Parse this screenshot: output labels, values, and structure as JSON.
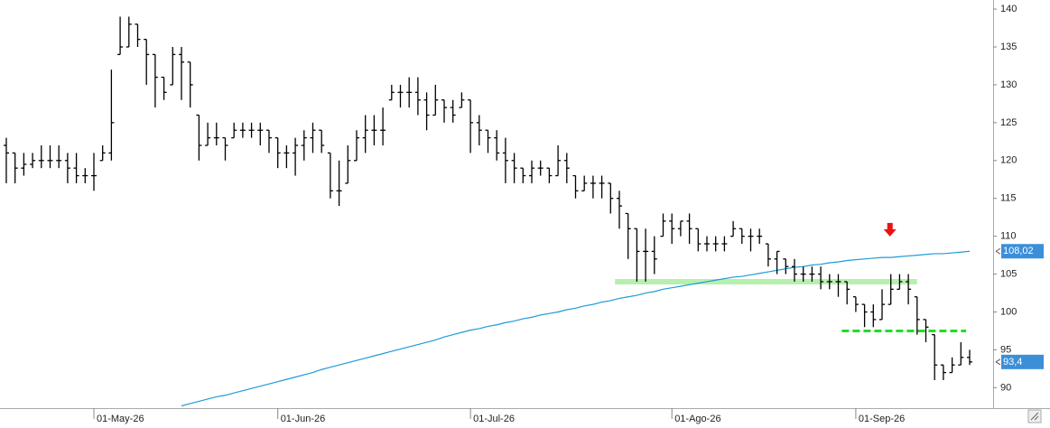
{
  "chart_data": {
    "type": "ohlc",
    "color": "#000000",
    "xlim": [
      -0.72,
      112.68
    ],
    "xticks": [
      {
        "value": 10,
        "label": "01-May-26"
      },
      {
        "value": 31,
        "label": "01-Jun-26"
      },
      {
        "value": 53,
        "label": "01-Jul-26"
      },
      {
        "value": 76,
        "label": "01-Ago-26"
      },
      {
        "value": 97,
        "label": "01-Sep-26"
      }
    ],
    "ylim": [
      87.3,
      141.2
    ],
    "yticks": [
      90,
      95,
      100,
      105,
      110,
      115,
      120,
      125,
      130,
      135,
      140
    ],
    "open": [
      122,
      121,
      119,
      119.5,
      120,
      120,
      120,
      120,
      119,
      118,
      118,
      120,
      121,
      134,
      135,
      138,
      136,
      134,
      131,
      130,
      134,
      133,
      126,
      122,
      123,
      123,
      123,
      124,
      124,
      124,
      124,
      123,
      121,
      121,
      122,
      123,
      124,
      121,
      116,
      117,
      120,
      123,
      124,
      124,
      128,
      129,
      129,
      129,
      128,
      126,
      128,
      127,
      127,
      128,
      125,
      124,
      123,
      121,
      120,
      119,
      118,
      119,
      119,
      118,
      120,
      118,
      116,
      117,
      117,
      117,
      115,
      113,
      111,
      108,
      108,
      110,
      112,
      111,
      112,
      111,
      109,
      109,
      109,
      110,
      111,
      110,
      110,
      109,
      107,
      107,
      106,
      105,
      105,
      105,
      104,
      104,
      104,
      102,
      101,
      100,
      99,
      101,
      103,
      104,
      102,
      99,
      97,
      93,
      92,
      93,
      94
    ],
    "high": [
      123,
      121,
      121,
      121,
      122,
      122,
      122,
      121,
      121,
      119,
      121,
      122,
      132,
      139,
      139,
      138,
      136,
      134,
      131,
      135,
      135,
      133,
      126,
      125,
      125,
      123,
      125,
      125,
      125,
      125,
      124,
      123,
      122,
      123,
      124,
      125,
      124,
      121,
      120,
      122,
      124,
      126,
      126,
      127,
      130,
      130,
      131,
      131,
      129,
      130,
      128,
      128,
      129,
      128,
      126,
      124,
      124,
      123,
      121,
      119,
      120,
      120,
      119,
      122,
      121,
      118,
      118,
      118,
      118,
      117,
      116,
      113,
      111,
      111,
      110,
      113,
      113,
      112,
      113,
      111,
      110,
      110,
      110,
      112,
      111,
      111,
      111,
      109,
      108,
      107,
      107,
      106,
      106,
      106,
      105,
      105,
      104,
      102,
      101,
      101,
      103,
      105,
      105,
      105,
      102,
      99,
      97,
      93,
      94,
      96,
      95
    ],
    "low": [
      117,
      117,
      118,
      119,
      119,
      119,
      119,
      117,
      117,
      117,
      116,
      120,
      120,
      134,
      135,
      135,
      130,
      127,
      128,
      130,
      128,
      127,
      120,
      122,
      122,
      120,
      123,
      123,
      123,
      122,
      121,
      119,
      119,
      118,
      120,
      121,
      121,
      115,
      114,
      117,
      120,
      121,
      122,
      122,
      128,
      127,
      127,
      126,
      124,
      126,
      125,
      125,
      127,
      121,
      122,
      121,
      120,
      117,
      117,
      117,
      117,
      118,
      117,
      118,
      117,
      115,
      116,
      115,
      115,
      113,
      111,
      107,
      104,
      104,
      105,
      110,
      109,
      110,
      109,
      108,
      108,
      108,
      108,
      110,
      109,
      108,
      109,
      106,
      105,
      105,
      104,
      104,
      104,
      103,
      103,
      102,
      101,
      100,
      98,
      98,
      99,
      101,
      103,
      101,
      97,
      96,
      91,
      91,
      92,
      93,
      93
    ],
    "close": [
      121,
      119,
      119.5,
      120,
      120,
      120,
      120,
      119,
      118,
      118,
      118,
      121,
      125,
      135,
      138,
      136,
      134,
      131,
      129,
      134,
      133,
      130,
      122,
      123,
      123,
      122,
      124,
      124,
      124,
      124,
      123,
      121,
      121,
      122,
      123,
      124,
      122,
      116,
      116,
      120,
      123,
      124,
      124,
      124,
      129,
      129,
      129,
      128,
      126,
      128,
      127,
      126,
      128,
      125,
      124,
      123,
      121,
      120,
      119,
      118,
      119,
      119,
      118,
      120,
      119,
      116,
      117,
      117,
      117,
      115,
      114,
      111,
      108,
      108,
      107,
      112,
      111,
      112,
      111,
      109,
      109,
      109,
      109,
      111,
      110,
      110,
      110,
      107,
      108,
      106,
      105,
      105,
      105,
      104,
      104,
      104,
      103,
      101,
      100,
      99,
      101,
      103,
      104,
      103,
      99,
      98,
      93,
      92,
      93,
      94,
      93.4
    ],
    "series": [
      {
        "color": "#1f9bd7",
        "values": [
          null,
          null,
          null,
          null,
          null,
          null,
          null,
          null,
          null,
          null,
          null,
          null,
          null,
          null,
          null,
          null,
          null,
          null,
          null,
          null,
          87.6,
          87.9,
          88.2,
          88.5,
          88.8,
          89.0,
          89.3,
          89.6,
          89.9,
          90.2,
          90.5,
          90.8,
          91.1,
          91.4,
          91.7,
          92.0,
          92.4,
          92.7,
          93.0,
          93.3,
          93.6,
          93.9,
          94.2,
          94.5,
          94.8,
          95.1,
          95.4,
          95.7,
          96.0,
          96.3,
          96.7,
          97.0,
          97.3,
          97.6,
          97.8,
          98.1,
          98.3,
          98.6,
          98.8,
          99.1,
          99.3,
          99.6,
          99.8,
          100.0,
          100.3,
          100.5,
          100.8,
          101.0,
          101.3,
          101.5,
          101.8,
          102.0,
          102.2,
          102.5,
          102.7,
          103.0,
          103.2,
          103.4,
          103.6,
          103.8,
          104.0,
          104.2,
          104.4,
          104.6,
          104.7,
          104.9,
          105.1,
          105.3,
          105.5,
          105.7,
          105.9,
          106.0,
          106.2,
          106.3,
          106.5,
          106.6,
          106.8,
          106.9,
          107.0,
          107.1,
          107.2,
          107.2,
          107.3,
          107.4,
          107.5,
          107.6,
          107.7,
          107.7,
          107.8,
          107.9,
          108.02
        ]
      }
    ],
    "price_tags": [
      {
        "value": 108.02,
        "label": "108,02",
        "color": "#3b8fd9"
      },
      {
        "value": 93.4,
        "label": "93,4",
        "color": "#3b8fd9"
      }
    ],
    "annotations": [
      {
        "type": "band",
        "y": 104,
        "x": [
          69.5,
          104
        ],
        "color": "#b5f0ad"
      },
      {
        "type": "dashed",
        "y": 97.5,
        "x": [
          95.4,
          109.6
        ],
        "color": "#22dd22"
      },
      {
        "type": "arrow",
        "y": 110.8,
        "x": 100.9,
        "color": "#ee1111"
      }
    ]
  }
}
